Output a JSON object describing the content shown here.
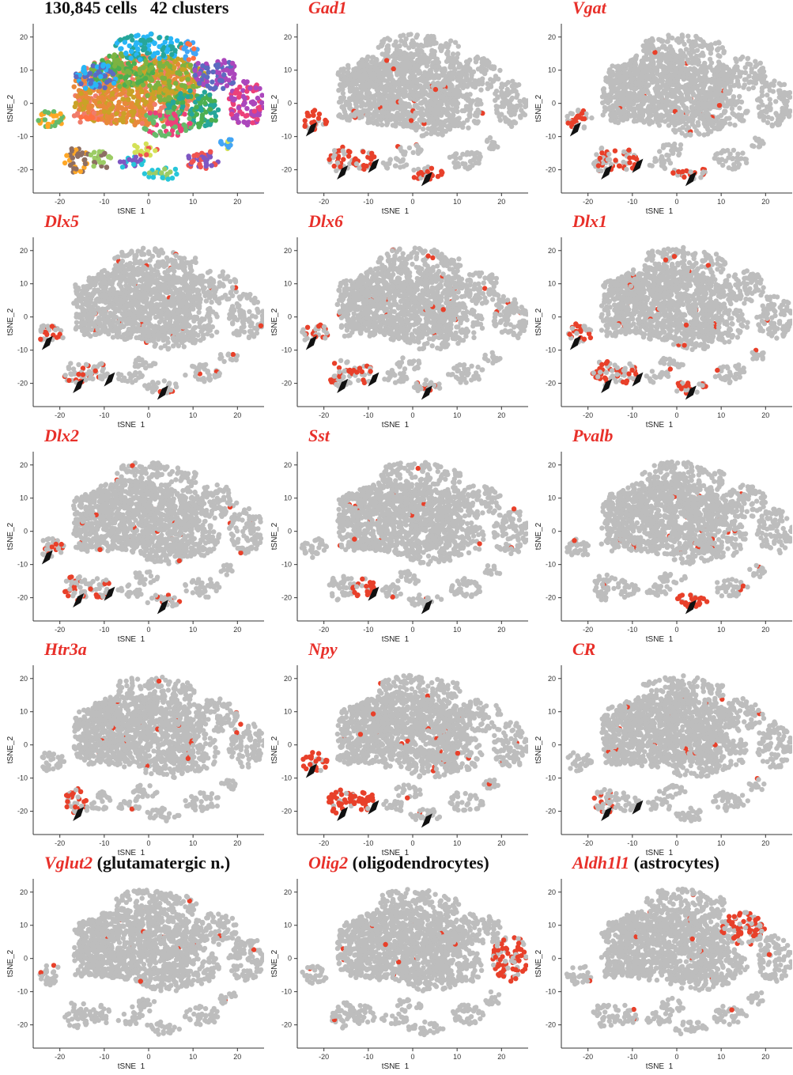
{
  "figure": {
    "grey_color": "#bdbdbd",
    "highlight_color": "#e8402a",
    "title_color": "#e8302a"
  },
  "chart_data": [
    {
      "type": "scatter",
      "title": "130,845 cells   42 clusters",
      "title_style": "plain",
      "xlabel": "tSNE_1",
      "ylabel": "tSNE_2",
      "xticks": [
        -20,
        -10,
        0,
        10,
        20
      ],
      "yticks": [
        -20,
        -10,
        0,
        10,
        20
      ],
      "xlim": [
        -26,
        26
      ],
      "ylim": [
        -27,
        24
      ],
      "color_by": "cluster",
      "cluster_count": 42,
      "arrows": [],
      "grid": false
    },
    {
      "type": "scatter",
      "title": "Gad1",
      "title_style": "gene",
      "xlabel": "tSNE_1",
      "ylabel": "tSNE_2",
      "xticks": [
        -20,
        -10,
        0,
        10,
        20
      ],
      "yticks": [
        -20,
        -10,
        0,
        10,
        20
      ],
      "xlim": [
        -26,
        26
      ],
      "ylim": [
        -27,
        24
      ],
      "highlight": "Gad1",
      "arrows": [
        {
          "x": -23,
          "y": -9
        },
        {
          "x": -16,
          "y": -22
        },
        {
          "x": -9,
          "y": -20
        },
        {
          "x": 3,
          "y": -24
        }
      ],
      "grid": false
    },
    {
      "type": "scatter",
      "title": "Vgat",
      "title_style": "gene",
      "xlabel": "tSNE_1",
      "ylabel": "tSNE_2",
      "xticks": [
        -20,
        -10,
        0,
        10,
        20
      ],
      "yticks": [
        -20,
        -10,
        0,
        10,
        20
      ],
      "xlim": [
        -26,
        26
      ],
      "ylim": [
        -27,
        24
      ],
      "highlight": "Vgat",
      "arrows": [
        {
          "x": -23,
          "y": -9
        },
        {
          "x": -16,
          "y": -22
        },
        {
          "x": -9,
          "y": -20
        },
        {
          "x": 3,
          "y": -24
        }
      ],
      "grid": false
    },
    {
      "type": "scatter",
      "title": "Dlx5",
      "title_style": "gene",
      "xlabel": "tSNE_1",
      "ylabel": "tSNE_2",
      "xticks": [
        -20,
        -10,
        0,
        10,
        20
      ],
      "yticks": [
        -20,
        -10,
        0,
        10,
        20
      ],
      "xlim": [
        -26,
        26
      ],
      "ylim": [
        -27,
        24
      ],
      "highlight": "Dlx5",
      "arrows": [
        {
          "x": -23,
          "y": -9
        },
        {
          "x": -16,
          "y": -22
        },
        {
          "x": -9,
          "y": -20
        },
        {
          "x": 3,
          "y": -24
        }
      ],
      "grid": false
    },
    {
      "type": "scatter",
      "title": "Dlx6",
      "title_style": "gene",
      "xlabel": "tSNE_1",
      "ylabel": "tSNE_2",
      "xticks": [
        -20,
        -10,
        0,
        10,
        20
      ],
      "yticks": [
        -20,
        -10,
        0,
        10,
        20
      ],
      "xlim": [
        -26,
        26
      ],
      "ylim": [
        -27,
        24
      ],
      "highlight": "Dlx6",
      "arrows": [
        {
          "x": -23,
          "y": -9
        },
        {
          "x": -16,
          "y": -22
        },
        {
          "x": -9,
          "y": -20
        },
        {
          "x": 3,
          "y": -24
        }
      ],
      "grid": false
    },
    {
      "type": "scatter",
      "title": "Dlx1",
      "title_style": "gene",
      "xlabel": "tSNE_1",
      "ylabel": "tSNE_2",
      "xticks": [
        -20,
        -10,
        0,
        10,
        20
      ],
      "yticks": [
        -20,
        -10,
        0,
        10,
        20
      ],
      "xlim": [
        -26,
        26
      ],
      "ylim": [
        -27,
        24
      ],
      "highlight": "Dlx1",
      "arrows": [
        {
          "x": -23,
          "y": -9
        },
        {
          "x": -16,
          "y": -22
        },
        {
          "x": -9,
          "y": -20
        },
        {
          "x": 3,
          "y": -24
        }
      ],
      "grid": false
    },
    {
      "type": "scatter",
      "title": "Dlx2",
      "title_style": "gene",
      "xlabel": "tSNE_1",
      "ylabel": "tSNE_2",
      "xticks": [
        -20,
        -10,
        0,
        10,
        20
      ],
      "yticks": [
        -20,
        -10,
        0,
        10,
        20
      ],
      "xlim": [
        -26,
        26
      ],
      "ylim": [
        -27,
        24
      ],
      "highlight": "Dlx2",
      "arrows": [
        {
          "x": -23,
          "y": -9
        },
        {
          "x": -16,
          "y": -22
        },
        {
          "x": -9,
          "y": -20
        },
        {
          "x": 3,
          "y": -24
        }
      ],
      "grid": false
    },
    {
      "type": "scatter",
      "title": "Sst",
      "title_style": "gene",
      "xlabel": "tSNE_1",
      "ylabel": "tSNE_2",
      "xticks": [
        -20,
        -10,
        0,
        10,
        20
      ],
      "yticks": [
        -20,
        -10,
        0,
        10,
        20
      ],
      "xlim": [
        -26,
        26
      ],
      "ylim": [
        -27,
        24
      ],
      "highlight": "Sst",
      "arrows": [
        {
          "x": -9,
          "y": -20
        },
        {
          "x": 3,
          "y": -24
        }
      ],
      "grid": false
    },
    {
      "type": "scatter",
      "title": "Pvalb",
      "title_style": "gene",
      "xlabel": "tSNE_1",
      "ylabel": "tSNE_2",
      "xticks": [
        -20,
        -10,
        0,
        10,
        20
      ],
      "yticks": [
        -20,
        -10,
        0,
        10,
        20
      ],
      "xlim": [
        -26,
        26
      ],
      "ylim": [
        -27,
        24
      ],
      "highlight": "Pvalb",
      "arrows": [
        {
          "x": 3,
          "y": -24
        }
      ],
      "grid": false
    },
    {
      "type": "scatter",
      "title": "Htr3a",
      "title_style": "gene",
      "xlabel": "tSNE_1",
      "ylabel": "tSNE_2",
      "xticks": [
        -20,
        -10,
        0,
        10,
        20
      ],
      "yticks": [
        -20,
        -10,
        0,
        10,
        20
      ],
      "xlim": [
        -26,
        26
      ],
      "ylim": [
        -27,
        24
      ],
      "highlight": "Htr3a",
      "arrows": [
        {
          "x": -16,
          "y": -22
        }
      ],
      "grid": false
    },
    {
      "type": "scatter",
      "title": "Npy",
      "title_style": "gene",
      "xlabel": "tSNE_1",
      "ylabel": "tSNE_2",
      "xticks": [
        -20,
        -10,
        0,
        10,
        20
      ],
      "yticks": [
        -20,
        -10,
        0,
        10,
        20
      ],
      "xlim": [
        -26,
        26
      ],
      "ylim": [
        -27,
        24
      ],
      "highlight": "Npy",
      "arrows": [
        {
          "x": -23,
          "y": -9
        },
        {
          "x": -16,
          "y": -22
        },
        {
          "x": -9,
          "y": -20
        },
        {
          "x": 3,
          "y": -24
        }
      ],
      "grid": false
    },
    {
      "type": "scatter",
      "title": "CR",
      "title_style": "gene",
      "xlabel": "tSNE_1",
      "ylabel": "tSNE_2",
      "xticks": [
        -20,
        -10,
        0,
        10,
        20
      ],
      "yticks": [
        -20,
        -10,
        0,
        10,
        20
      ],
      "xlim": [
        -26,
        26
      ],
      "ylim": [
        -27,
        24
      ],
      "highlight": "CR",
      "arrows": [
        {
          "x": -16,
          "y": -22
        },
        {
          "x": -9,
          "y": -20
        }
      ],
      "grid": false
    },
    {
      "type": "scatter",
      "title": "Vglut2",
      "title_suffix": " (glutamatergic n.)",
      "title_style": "gene",
      "xlabel": "tSNE_1",
      "ylabel": "tSNE_2",
      "xticks": [
        -20,
        -10,
        0,
        10,
        20
      ],
      "yticks": [
        -20,
        -10,
        0,
        10,
        20
      ],
      "xlim": [
        -26,
        26
      ],
      "ylim": [
        -27,
        24
      ],
      "highlight": "Vglut2",
      "arrows": [],
      "grid": false
    },
    {
      "type": "scatter",
      "title": "Olig2",
      "title_suffix": " (oligodendrocytes)",
      "title_style": "gene",
      "xlabel": "tSNE_1",
      "ylabel": "tSNE_2",
      "xticks": [
        -20,
        -10,
        0,
        10,
        20
      ],
      "yticks": [
        -20,
        -10,
        0,
        10,
        20
      ],
      "xlim": [
        -26,
        26
      ],
      "ylim": [
        -27,
        24
      ],
      "highlight": "Olig2",
      "arrows": [],
      "grid": false
    },
    {
      "type": "scatter",
      "title": "Aldh1l1",
      "title_suffix": " (astrocytes)",
      "title_style": "gene",
      "xlabel": "tSNE_1",
      "ylabel": "tSNE_2",
      "xticks": [
        -20,
        -10,
        0,
        10,
        20
      ],
      "yticks": [
        -20,
        -10,
        0,
        10,
        20
      ],
      "xlim": [
        -26,
        26
      ],
      "ylim": [
        -27,
        24
      ],
      "highlight": "Aldh1l1",
      "arrows": [],
      "grid": false
    }
  ]
}
